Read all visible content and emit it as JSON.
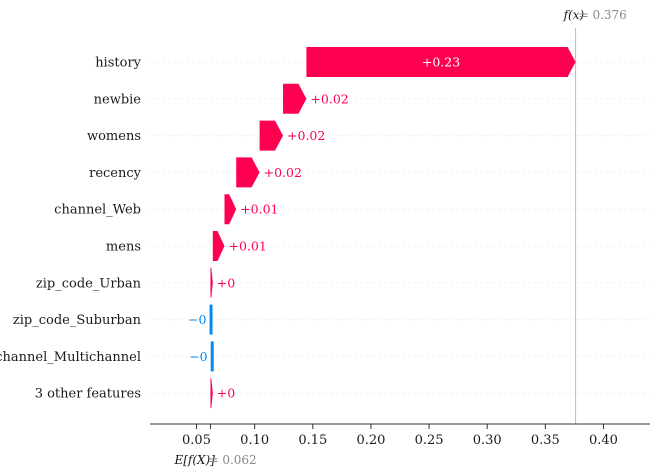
{
  "chart_data": {
    "type": "waterfall",
    "features": [
      {
        "name": "history",
        "contribution": 0.23,
        "label": "+0.23"
      },
      {
        "name": "newbie",
        "contribution": 0.02,
        "label": "+0.02"
      },
      {
        "name": "womens",
        "contribution": 0.02,
        "label": "+0.02"
      },
      {
        "name": "recency",
        "contribution": 0.02,
        "label": "+0.02"
      },
      {
        "name": "channel_Web",
        "contribution": 0.01,
        "label": "+0.01"
      },
      {
        "name": "mens",
        "contribution": 0.01,
        "label": "+0.01"
      },
      {
        "name": "zip_code_Urban",
        "contribution": 0.002,
        "label": "+0"
      },
      {
        "name": "zip_code_Suburban",
        "contribution": -0.001,
        "label": "−0"
      },
      {
        "name": "channel_Multichannel",
        "contribution": -0.001,
        "label": "−0"
      },
      {
        "name": "3 other features",
        "contribution": 0.002,
        "label": "+0"
      }
    ],
    "fx": {
      "label": "f(x)",
      "value_text": "= 0.376",
      "value": 0.376
    },
    "efx": {
      "label": "E[f(X)]",
      "value_text": "= 0.062",
      "value": 0.062
    },
    "x_ticks": [
      0.05,
      0.1,
      0.15,
      0.2,
      0.25,
      0.3,
      0.35,
      0.4
    ],
    "x_tick_labels": [
      "0.05",
      "0.10",
      "0.15",
      "0.20",
      "0.25",
      "0.30",
      "0.35",
      "0.40"
    ],
    "xlim": [
      0.01,
      0.44
    ],
    "colors": {
      "positive": "#ff0051",
      "negative": "#008bfb",
      "grid": "#f0f0f0",
      "axis": "#333333",
      "fx_line": "#bbbbbb"
    }
  }
}
